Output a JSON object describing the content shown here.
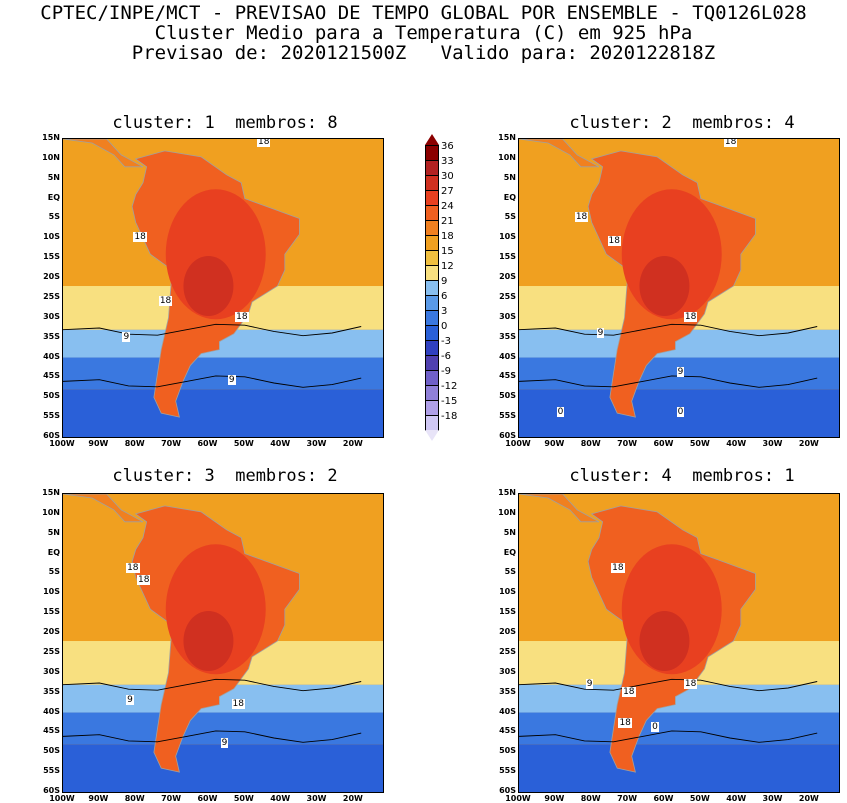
{
  "header": {
    "line1": "CPTEC/INPE/MCT - PREVISAO DE TEMPO GLOBAL POR ENSEMBLE - TQ0126L028",
    "line2": "Cluster Medio para a Temperatura (C) em 925 hPa",
    "line3": "Previsao de: 2020121500Z   Valido para: 2020122818Z"
  },
  "panels": [
    {
      "title": "cluster: 1  membros: 8",
      "contour_labels": [
        "18",
        "18",
        "18",
        "18",
        "9",
        "9"
      ]
    },
    {
      "title": "cluster: 2  membros: 4",
      "contour_labels": [
        "18",
        "18",
        "18",
        "18",
        "9",
        "9",
        "0",
        "0"
      ]
    },
    {
      "title": "cluster: 3  membros: 2",
      "contour_labels": [
        "18",
        "18",
        "18",
        "9",
        "9"
      ]
    },
    {
      "title": "cluster: 4  membros: 1",
      "contour_labels": [
        "18",
        "18",
        "18",
        "18",
        "9",
        "0"
      ]
    }
  ],
  "lat_labels": [
    "15N",
    "10N",
    "5N",
    "EQ",
    "5S",
    "10S",
    "15S",
    "20S",
    "25S",
    "30S",
    "35S",
    "40S",
    "45S",
    "50S",
    "55S",
    "60S"
  ],
  "lon_labels": [
    "100W",
    "90W",
    "80W",
    "70W",
    "60W",
    "50W",
    "40W",
    "30W",
    "20W"
  ],
  "colorbar": {
    "levels": [
      "36",
      "33",
      "30",
      "27",
      "24",
      "21",
      "18",
      "15",
      "12",
      "9",
      "6",
      "3",
      "0",
      "-3",
      "-6",
      "-9",
      "-12",
      "-15",
      "-18"
    ],
    "colors": [
      "#8b0000",
      "#b22222",
      "#d03020",
      "#e84020",
      "#f06020",
      "#f08020",
      "#f0a020",
      "#f0c040",
      "#f8e080",
      "#88bff0",
      "#5a9ae8",
      "#3a78e0",
      "#2a60d8",
      "#3040c0",
      "#5040b0",
      "#7060c8",
      "#9080d8",
      "#b0a0e8",
      "#d0c8f4"
    ]
  }
}
